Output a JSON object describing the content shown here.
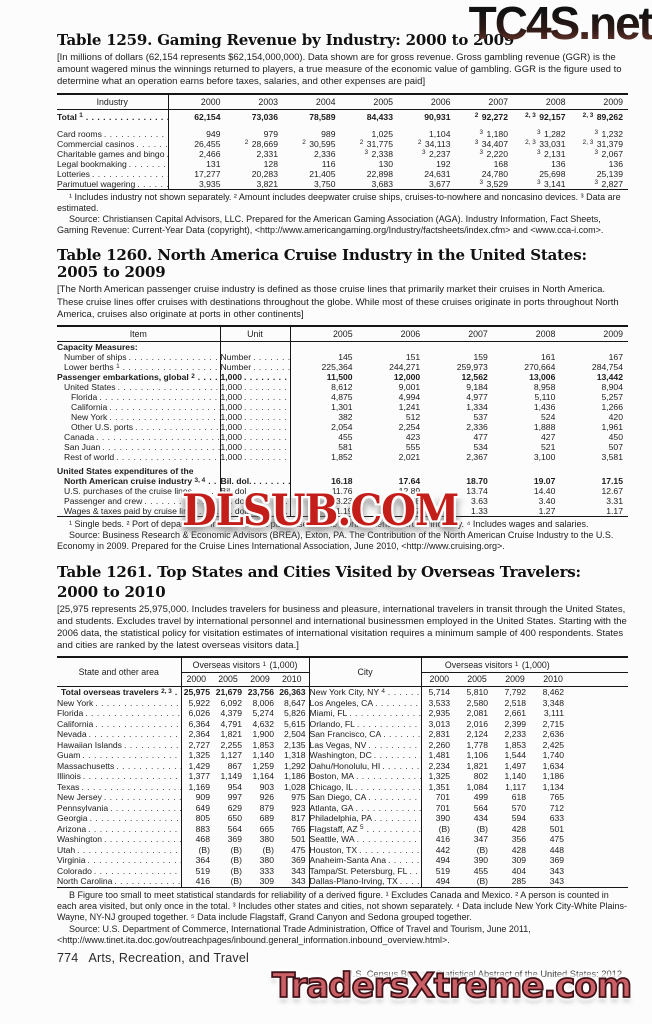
{
  "watermarks": {
    "top": "TC4S.net",
    "middle": "DLSUB.COM",
    "bottom": "TradersXtreme.com",
    "middle_color": "#c41e1a",
    "bottom_color": "#cb5f66"
  },
  "table1259": {
    "title": "Table 1259. Gaming Revenue by Industry: 2000 to 2009",
    "note": "[In millions of dollars (62,154 represents $62,154,000,000). Data shown are for gross revenue. Gross gambling revenue (GGR) is the amount wagered minus the winnings returned to players, a true measure of the economic value of gambling. GGR is the figure used to determine what an operation earns before taxes, salaries, and other expenses are paid]",
    "stub_header": "Industry",
    "years": [
      "2000",
      "2003",
      "2004",
      "2005",
      "2006",
      "2007",
      "2008",
      "2009"
    ],
    "rows": [
      {
        "label": "Total {1}",
        "bold": true,
        "total": true,
        "values": [
          "62,154",
          "73,036",
          "78,589",
          "84,433",
          "90,931",
          "{2} 92,272",
          "{2, 3} 92,157",
          "{2, 3} 89,262"
        ]
      },
      {
        "label": "Card rooms",
        "values": [
          "949",
          "979",
          "989",
          "1,025",
          "1,104",
          "{3} 1,180",
          "{3} 1,282",
          "{3} 1,232"
        ]
      },
      {
        "label": "Commercial casinos",
        "values": [
          "26,455",
          "{2} 28,669",
          "{2} 30,595",
          "{2} 31,775",
          "{2} 34,113",
          "{3} 34,407",
          "{2, 3} 33,031",
          "{2, 3} 31,379"
        ]
      },
      {
        "label": "Charitable games and bingo",
        "values": [
          "2,466",
          "2,331",
          "2,336",
          "{3} 2,338",
          "{3} 2,237",
          "{3} 2,220",
          "{3} 2,131",
          "{3} 2,067"
        ]
      },
      {
        "label": "Legal bookmaking",
        "values": [
          "131",
          "128",
          "116",
          "130",
          "192",
          "168",
          "136",
          "136"
        ]
      },
      {
        "label": "Lotteries",
        "values": [
          "17,277",
          "20,283",
          "21,405",
          "22,898",
          "24,631",
          "24,780",
          "25,698",
          "25,139"
        ]
      },
      {
        "label": "Parimutuel wagering",
        "values": [
          "3,935",
          "3,821",
          "3,750",
          "3,683",
          "3,677",
          "{3} 3,529",
          "{3} 3,141",
          "{3} 2,827"
        ]
      }
    ],
    "footnotes": "¹ Includes industry not shown separately. ² Amount includes deepwater cruise ships, cruises-to-nowhere and noncasino devices. ³ Data are estimated.",
    "source": "Source: Christiansen Capital Advisors, LLC. Prepared for the American Gaming Association (AGA). Industry Information, Fact Sheets, Gaming Revenue: Current-Year Data (copyright), <http://www.americangaming.org/Industry/factsheets/index.cfm> and <www.cca-i.com>."
  },
  "table1260": {
    "title": "Table 1260. North America Cruise Industry in the United States: 2005 to 2009",
    "note": "[The North American passenger cruise industry is defined as those cruise lines that primarily market their cruises in North America. These cruise lines offer cruises with destinations throughout the globe. While most of these cruises originate in ports throughout North America, cruises also originate at ports in other continents]",
    "stub_header": "Item",
    "unit_header": "Unit",
    "years": [
      "2005",
      "2006",
      "2007",
      "2008",
      "2009"
    ],
    "rows": [
      {
        "label": "Capacity Measures:",
        "section": true,
        "bold": true
      },
      {
        "label": "Number of ships",
        "indent": 1,
        "unit": "Number",
        "values": [
          "145",
          "151",
          "159",
          "161",
          "167"
        ]
      },
      {
        "label": "Lower berths {1}",
        "indent": 1,
        "unit": "Number",
        "values": [
          "225,364",
          "244,271",
          "259,973",
          "270,664",
          "284,754"
        ]
      },
      {
        "label": "Passenger embarkations, global {2}",
        "bold": true,
        "unit": "1,000",
        "values": [
          "11,500",
          "12,000",
          "12,562",
          "13,006",
          "13,442"
        ]
      },
      {
        "label": "United States",
        "indent": 1,
        "unit": "1,000",
        "values": [
          "8,612",
          "9,001",
          "9,184",
          "8,958",
          "8,904"
        ]
      },
      {
        "label": "Florida",
        "indent": 2,
        "unit": "1,000",
        "values": [
          "4,875",
          "4,994",
          "4,977",
          "5,110",
          "5,257"
        ]
      },
      {
        "label": "California",
        "indent": 2,
        "unit": "1,000",
        "values": [
          "1,301",
          "1,241",
          "1,334",
          "1,436",
          "1,266"
        ]
      },
      {
        "label": "New York",
        "indent": 2,
        "unit": "1,000",
        "values": [
          "382",
          "512",
          "537",
          "524",
          "420"
        ]
      },
      {
        "label": "Other U.S. ports",
        "indent": 2,
        "unit": "1,000",
        "values": [
          "2,054",
          "2,254",
          "2,336",
          "1,888",
          "1,961"
        ]
      },
      {
        "label": "Canada",
        "indent": 1,
        "unit": "1,000",
        "values": [
          "455",
          "423",
          "477",
          "427",
          "450"
        ]
      },
      {
        "label": "San Juan",
        "indent": 1,
        "unit": "1,000",
        "values": [
          "581",
          "555",
          "534",
          "521",
          "507"
        ]
      },
      {
        "label": "Rest of world",
        "indent": 1,
        "unit": "1,000",
        "values": [
          "1,852",
          "2,021",
          "2,367",
          "3,100",
          "3,581"
        ]
      },
      {
        "label": "United States expenditures of the",
        "label2": "North American cruise industry {3, 4}",
        "bold": true,
        "gap": true,
        "unit": "Bil. dol.",
        "values": [
          "16.18",
          "17.64",
          "18.70",
          "19.07",
          "17.15"
        ]
      },
      {
        "label": "U.S. purchases of the cruise lines",
        "indent": 1,
        "unit": "Bil. dol.",
        "values": [
          "11.76",
          "12.89",
          "13.74",
          "14.40",
          "12.67"
        ]
      },
      {
        "label": "Passenger and crew",
        "indent": 1,
        "unit": "Bil. dol.",
        "values": [
          "3.23",
          "3.48",
          "3.63",
          "3.40",
          "3.31"
        ]
      },
      {
        "label": "Wages & taxes paid by cruise lines",
        "indent": 1,
        "unit": "Bil. dol.",
        "values": [
          "1.19",
          "1.27",
          "1.33",
          "1.27",
          "1.17"
        ]
      }
    ],
    "footnotes": "¹ Single beds. ² Port of departure. ³ Includes direct purchases of the North American cruise industry. ⁴ Includes wages and salaries.",
    "source": "Source: Business Research & Economic Advisors (BREA), Exton, PA. The Contribution of the North American Cruise Industry to the U.S. Economy in 2009. Prepared for the Cruise Lines International Association, June 2010, <http://www.cruising.org>."
  },
  "table1261": {
    "title_line1": "Table 1261. Top States and Cities Visited by Overseas Travelers:",
    "title_line2": "2000 to 2010",
    "note": "[25,975 represents 25,975,000. Includes travelers for business and pleasure, international travelers in transit through the United States, and students. Excludes travel by international personnel and international businessmen employed in the United States. Starting with the 2006 data, the statistical policy for visitation estimates of international visitation requires a minimum sample of 400 respondents. States and cities are ranked by the latest overseas visitors data.]",
    "stub_left": "State and other area",
    "stub_right": "City",
    "group_header": "Overseas visitors {1} (1,000)",
    "years": [
      "2000",
      "2005",
      "2009",
      "2010"
    ],
    "state_rows": [
      {
        "label": "Total overseas travelers {2, 3}",
        "bold": true,
        "values": [
          "25,975",
          "21,679",
          "23,756",
          "26,363"
        ]
      },
      {
        "label": "New York",
        "values": [
          "5,922",
          "6,092",
          "8,006",
          "8,647"
        ]
      },
      {
        "label": "Florida",
        "values": [
          "6,026",
          "4,379",
          "5,274",
          "5,826"
        ]
      },
      {
        "label": "California",
        "values": [
          "6,364",
          "4,791",
          "4,632",
          "5,615"
        ]
      },
      {
        "label": "Nevada",
        "values": [
          "2,364",
          "1,821",
          "1,900",
          "2,504"
        ]
      },
      {
        "label": "Hawaiian Islands",
        "values": [
          "2,727",
          "2,255",
          "1,853",
          "2,135"
        ]
      },
      {
        "label": "Guam",
        "values": [
          "1,325",
          "1,127",
          "1,140",
          "1,318"
        ]
      },
      {
        "label": "Massachusetts",
        "values": [
          "1,429",
          "867",
          "1,259",
          "1,292"
        ]
      },
      {
        "label": "Illinois",
        "values": [
          "1,377",
          "1,149",
          "1,164",
          "1,186"
        ]
      },
      {
        "label": "Texas",
        "values": [
          "1,169",
          "954",
          "903",
          "1,028"
        ]
      },
      {
        "label": "New Jersey",
        "values": [
          "909",
          "997",
          "926",
          "975"
        ]
      },
      {
        "label": "Pennsylvania",
        "values": [
          "649",
          "629",
          "879",
          "923"
        ]
      },
      {
        "label": "Georgia",
        "values": [
          "805",
          "650",
          "689",
          "817"
        ]
      },
      {
        "label": "Arizona",
        "values": [
          "883",
          "564",
          "665",
          "765"
        ]
      },
      {
        "label": "Washington",
        "values": [
          "468",
          "369",
          "380",
          "501"
        ]
      },
      {
        "label": "Utah",
        "values": [
          "(B)",
          "(B)",
          "(B)",
          "475"
        ]
      },
      {
        "label": "Virginia",
        "values": [
          "364",
          "(B)",
          "380",
          "369"
        ]
      },
      {
        "label": "Colorado",
        "values": [
          "519",
          "(B)",
          "333",
          "343"
        ]
      },
      {
        "label": "North Carolina",
        "values": [
          "416",
          "(B)",
          "309",
          "343"
        ]
      }
    ],
    "city_rows": [
      {
        "label": "New York City, NY {4}",
        "values": [
          "5,714",
          "5,810",
          "7,792",
          "8,462"
        ]
      },
      {
        "label": "Los Angeles, CA",
        "values": [
          "3,533",
          "2,580",
          "2,518",
          "3,348"
        ]
      },
      {
        "label": "Miami, FL",
        "values": [
          "2,935",
          "2,081",
          "2,661",
          "3,111"
        ]
      },
      {
        "label": "Orlando, FL",
        "values": [
          "3,013",
          "2,016",
          "2,399",
          "2,715"
        ]
      },
      {
        "label": "San Francisco, CA",
        "values": [
          "2,831",
          "2,124",
          "2,233",
          "2,636"
        ]
      },
      {
        "label": "Las Vegas, NV",
        "values": [
          "2,260",
          "1,778",
          "1,853",
          "2,425"
        ]
      },
      {
        "label": "Washington, DC",
        "values": [
          "1,481",
          "1,106",
          "1,544",
          "1,740"
        ]
      },
      {
        "label": "Oahu/Honolulu, HI",
        "values": [
          "2,234",
          "1,821",
          "1,497",
          "1,634"
        ]
      },
      {
        "label": "Boston, MA",
        "values": [
          "1,325",
          "802",
          "1,140",
          "1,186"
        ]
      },
      {
        "label": "Chicago, IL",
        "values": [
          "1,351",
          "1,084",
          "1,117",
          "1,134"
        ]
      },
      {
        "label": "San Diego, CA",
        "values": [
          "701",
          "499",
          "618",
          "765"
        ]
      },
      {
        "label": "Atlanta, GA",
        "values": [
          "701",
          "564",
          "570",
          "712"
        ]
      },
      {
        "label": "Philadelphia, PA",
        "values": [
          "390",
          "434",
          "594",
          "633"
        ]
      },
      {
        "label": "Flagstaff, AZ {5}",
        "values": [
          "(B)",
          "(B)",
          "428",
          "501"
        ]
      },
      {
        "label": "Seattle, WA",
        "values": [
          "416",
          "347",
          "356",
          "475"
        ]
      },
      {
        "label": "Houston, TX",
        "values": [
          "442",
          "(B)",
          "428",
          "448"
        ]
      },
      {
        "label": "Anaheim-Santa Ana",
        "values": [
          "494",
          "390",
          "309",
          "369"
        ]
      },
      {
        "label": "Tampa/St. Petersburg, FL",
        "values": [
          "519",
          "455",
          "404",
          "343"
        ]
      },
      {
        "label": "Dallas-Plano-Irving, TX",
        "values": [
          "494",
          "(B)",
          "285",
          "343"
        ]
      }
    ],
    "footnotes": "B Figure too small to meet statistical standards for reliability of a derived figure. ¹ Excludes Canada and Mexico. ² A person is counted in each area visited, but only once in the total. ³ Includes other states and cities, not shown separately. ⁴ Data include New York City-White Plains-Wayne, NY-NJ grouped together. ⁵ Data include Flagstaff, Grand Canyon and Sedona grouped together.",
    "source": "Source: U.S. Department of Commerce, International Trade Administration, Office of Travel and Tourism, June 2011, <http://www.tinet.ita.doc.gov/outreachpages/inbound.general_information.inbound_overview.html>."
  },
  "footer": {
    "page_number": "774",
    "section": "Arts, Recreation, and Travel",
    "imprint": "U.S. Census Bureau, Statistical Abstract of the United States: 2012"
  }
}
